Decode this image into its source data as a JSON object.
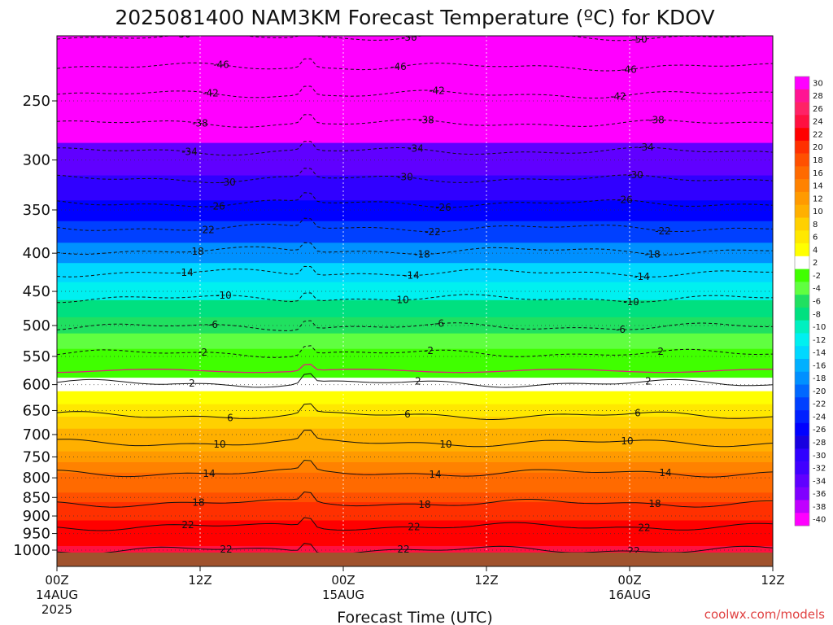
{
  "chart_data": {
    "type": "heatmap",
    "title": "2025081400 NAM3KM Forecast Temperature (ºC) for KDOV",
    "xlabel": "Forecast Time (UTC)",
    "credit": "coolwx.com/models",
    "x_ticks": [
      {
        "hour": 0,
        "label": "00Z",
        "date": "14AUG",
        "year": "2025"
      },
      {
        "hour": 12,
        "label": "12Z",
        "date": "",
        "year": ""
      },
      {
        "hour": 24,
        "label": "00Z",
        "date": "15AUG",
        "year": ""
      },
      {
        "hour": 36,
        "label": "12Z",
        "date": "",
        "year": ""
      },
      {
        "hour": 48,
        "label": "00Z",
        "date": "16AUG",
        "year": ""
      },
      {
        "hour": 60,
        "label": "12Z",
        "date": "",
        "year": ""
      }
    ],
    "xlim": [
      0,
      60
    ],
    "pressure_ticks_hpa": [
      "250",
      "300",
      "350",
      "400",
      "450",
      "500",
      "550",
      "600",
      "650",
      "700",
      "750",
      "800",
      "850",
      "900",
      "950",
      "1000"
    ],
    "ylim_hpa": [
      200,
      1010
    ],
    "y_scale": "log",
    "colorbar_labels": [
      "30",
      "28",
      "26",
      "24",
      "22",
      "20",
      "18",
      "16",
      "14",
      "12",
      "10",
      "8",
      "6",
      "4",
      "2",
      "-2",
      "-4",
      "-6",
      "-8",
      "-10",
      "-12",
      "-14",
      "-16",
      "-18",
      "-20",
      "-22",
      "-24",
      "-26",
      "-28",
      "-30",
      "-32",
      "-34",
      "-36",
      "-38",
      "-40"
    ],
    "colorbar_colors": [
      "#ff00ff",
      "#ff1493",
      "#ff2266",
      "#ff1040",
      "#ff0000",
      "#ff3000",
      "#ff5000",
      "#ff6a00",
      "#ff8200",
      "#ff9a00",
      "#ffb000",
      "#ffd000",
      "#ffe800",
      "#ffff00",
      "#ffffff",
      "#40ff00",
      "#60ff40",
      "#20e060",
      "#00e080",
      "#00f0c0",
      "#00f0f0",
      "#00d8ff",
      "#00b0ff",
      "#0090ff",
      "#0068ff",
      "#0040ff",
      "#0020ff",
      "#0000ff",
      "#1800e0",
      "#3000ff",
      "#4000ff",
      "#6000ff",
      "#8000ff",
      "#c000ff",
      "#ff00ff"
    ],
    "profile_levels_hpa": [
      200,
      230,
      250,
      270,
      300,
      330,
      350,
      375,
      400,
      425,
      450,
      475,
      500,
      525,
      550,
      575,
      600,
      625,
      650,
      675,
      700,
      725,
      750,
      775,
      800,
      825,
      850,
      875,
      900,
      925,
      950,
      975,
      1000
    ],
    "profile_temps_c": [
      -52,
      -47,
      -43,
      -39,
      -34,
      -29,
      -25,
      -21,
      -18,
      -14,
      -11,
      -8,
      -6,
      -3,
      -1,
      1,
      2,
      4,
      6,
      8,
      10,
      11,
      13,
      14,
      16,
      17,
      18,
      20,
      21,
      22,
      23,
      23,
      24
    ],
    "contours": [
      {
        "label": "-50",
        "p": 205
      },
      {
        "label": "-46",
        "p": 225
      },
      {
        "label": "-42",
        "p": 245
      },
      {
        "label": "-38",
        "p": 268
      },
      {
        "label": "-34",
        "p": 292
      },
      {
        "label": "-30",
        "p": 318
      },
      {
        "label": "-26",
        "p": 343
      },
      {
        "label": "-22",
        "p": 370
      },
      {
        "label": "-18",
        "p": 397
      },
      {
        "label": "-14",
        "p": 425
      },
      {
        "label": "-10",
        "p": 460
      },
      {
        "label": "-6",
        "p": 502
      },
      {
        "label": "-2",
        "p": 545
      },
      {
        "label": "2",
        "p": 598
      },
      {
        "label": "6",
        "p": 660
      },
      {
        "label": "10",
        "p": 718
      },
      {
        "label": "14",
        "p": 788
      },
      {
        "label": "18",
        "p": 865
      },
      {
        "label": "22",
        "p": 930
      },
      {
        "label": "22",
        "p": 1000
      }
    ],
    "grid": true,
    "colorbar_position": "right"
  }
}
